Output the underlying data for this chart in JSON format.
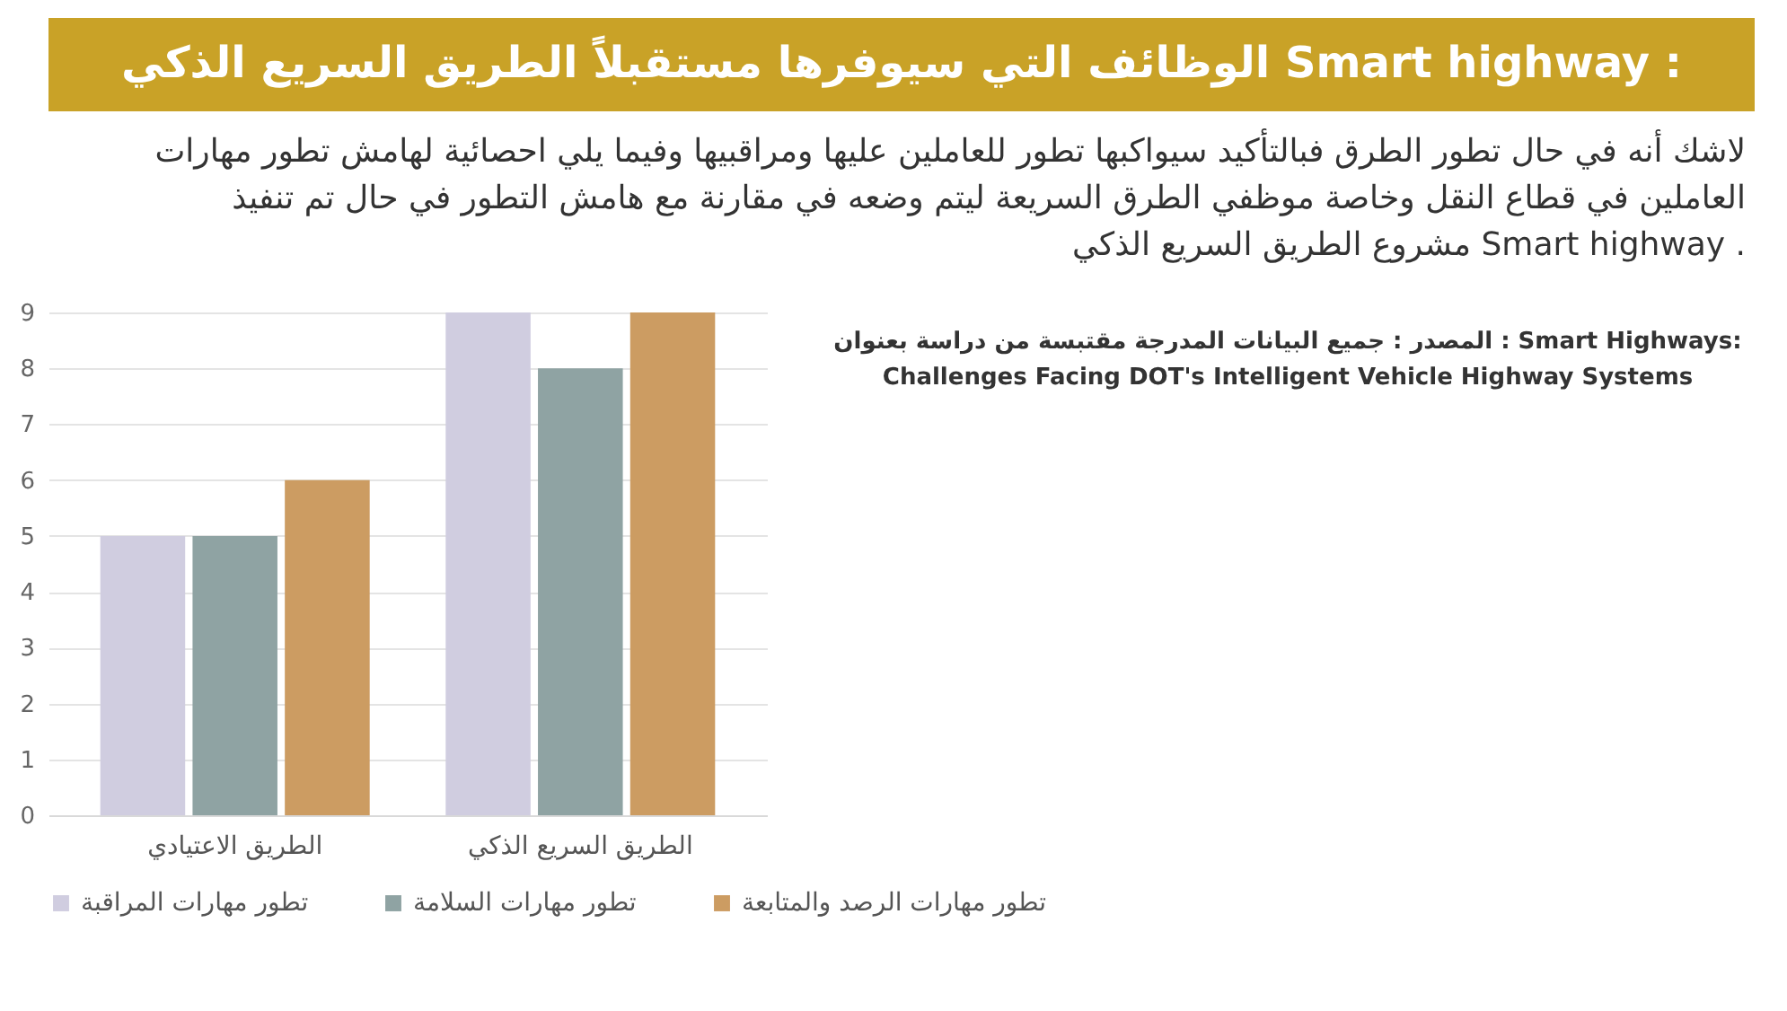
{
  "chart_data": {
    "type": "bar",
    "title": "الوظائف التي سيوفرها مستقبلاً الطريق السريع الذكي Smart highway :",
    "subtitle": "لاشك أنه في حال تطور الطرق فبالتأكيد سيواكبها تطور للعاملين عليها ومراقبيها وفيما يلي احصائية لهامش تطور مهارات\nالعاملين في قطاع النقل وخاصة موظفي الطرق السريعة ليتم وضعه في مقارنة مع هامش التطور في حال تم تنفيذ\nمشروع الطريق السريع الذكي Smart highway .",
    "annotations": [
      "المصدر : جميع البيانات المدرجة مقتبسة من دراسة بعنوان : Smart Highways:\nChallenges Facing DOT's Intelligent Vehicle Highway Systems"
    ],
    "categories": [
      "الطريق الاعتيادي",
      "الطريق السريع الذكي"
    ],
    "series": [
      {
        "name": "تطور مهارات المراقبة",
        "color": "#d0cde0",
        "values": [
          5,
          9
        ]
      },
      {
        "name": "تطور مهارات السلامة",
        "color": "#8fa3a3",
        "values": [
          5,
          8
        ]
      },
      {
        "name": "تطور مهارات الرصد والمتابعة",
        "color": "#cc9c62",
        "values": [
          6,
          9
        ]
      }
    ],
    "ylim": [
      0,
      9
    ],
    "yticks": [
      0,
      1,
      2,
      3,
      4,
      5,
      6,
      7,
      8,
      9
    ],
    "grid": "y",
    "legend": "bottom"
  }
}
